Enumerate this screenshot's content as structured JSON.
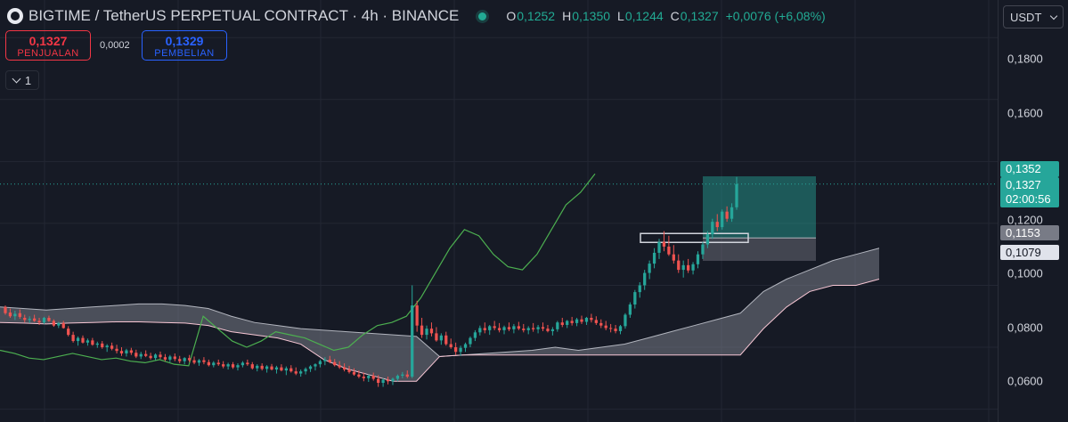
{
  "header": {
    "title": "BIGTIME / TetherUS PERPETUAL CONTRACT · 4h · BINANCE",
    "ohlc": {
      "o_key": "O",
      "o": "0,1252",
      "h_key": "H",
      "h": "0,1350",
      "l_key": "L",
      "l": "0,1244",
      "c_key": "C",
      "c": "0,1327",
      "change": "+0,0076 (+6,08%)"
    }
  },
  "trade": {
    "sell_price": "0,1327",
    "sell_label": "PENJUALAN",
    "spread": "0,0002",
    "buy_price": "0,1329",
    "buy_label": "PEMBELIAN"
  },
  "indicator_toggle": {
    "count": "1"
  },
  "currency": {
    "label": "USDT"
  },
  "axis": {
    "ticks": [
      "0,1800",
      "0,1600",
      "0,1200",
      "0,1000",
      "0,0800",
      "0,0600"
    ],
    "tags": {
      "high": "0,1352",
      "last": "0,1327",
      "countdown": "02:00:56",
      "level_a": "0,1153",
      "level_b": "0,1079"
    }
  },
  "colors": {
    "up": "#26a69a",
    "down": "#ef5350",
    "cloud_fill": "#787b86",
    "lagging": "#4caf50",
    "span_b": "#f7c6d4",
    "accent": "#22ab94"
  },
  "chart_data": {
    "type": "candlestick",
    "symbol": "BIGTIME/USDT perpetual",
    "timeframe": "4h",
    "exchange": "BINANCE",
    "ylim": [
      0.057,
      0.191
    ],
    "grid": true,
    "last_price": 0.1327,
    "price_line": 0.1327,
    "candles": [
      [
        0.093,
        0.0935,
        0.0905,
        0.091
      ],
      [
        0.0912,
        0.0925,
        0.0895,
        0.09
      ],
      [
        0.09,
        0.0918,
        0.0888,
        0.0908
      ],
      [
        0.091,
        0.0922,
        0.0892,
        0.0898
      ],
      [
        0.0895,
        0.0905,
        0.088,
        0.0888
      ],
      [
        0.0888,
        0.09,
        0.0878,
        0.0892
      ],
      [
        0.0893,
        0.0905,
        0.0882,
        0.0885
      ],
      [
        0.0885,
        0.0895,
        0.0872,
        0.088
      ],
      [
        0.088,
        0.0898,
        0.0875,
        0.0895
      ],
      [
        0.0895,
        0.0902,
        0.0882,
        0.0885
      ],
      [
        0.0885,
        0.089,
        0.0866,
        0.087
      ],
      [
        0.087,
        0.0882,
        0.0862,
        0.0878
      ],
      [
        0.0878,
        0.0885,
        0.086,
        0.0862
      ],
      [
        0.086,
        0.0868,
        0.0835,
        0.084
      ],
      [
        0.084,
        0.085,
        0.0815,
        0.082
      ],
      [
        0.082,
        0.0835,
        0.0805,
        0.083
      ],
      [
        0.083,
        0.0838,
        0.0812,
        0.0815
      ],
      [
        0.0815,
        0.0828,
        0.0805,
        0.0822
      ],
      [
        0.0822,
        0.083,
        0.0805,
        0.0808
      ],
      [
        0.0808,
        0.0818,
        0.0798,
        0.0812
      ],
      [
        0.0812,
        0.082,
        0.0795,
        0.08
      ],
      [
        0.08,
        0.081,
        0.0785,
        0.0805
      ],
      [
        0.0805,
        0.0815,
        0.079,
        0.0795
      ],
      [
        0.0795,
        0.0808,
        0.078,
        0.0788
      ],
      [
        0.0788,
        0.08,
        0.0772,
        0.078
      ],
      [
        0.078,
        0.0795,
        0.077,
        0.079
      ],
      [
        0.079,
        0.0798,
        0.0775,
        0.0782
      ],
      [
        0.0782,
        0.0792,
        0.0765,
        0.077
      ],
      [
        0.077,
        0.0785,
        0.0762,
        0.0778
      ],
      [
        0.0778,
        0.079,
        0.0768,
        0.0772
      ],
      [
        0.0772,
        0.0782,
        0.076,
        0.0765
      ],
      [
        0.0765,
        0.078,
        0.0758,
        0.0776
      ],
      [
        0.0776,
        0.0786,
        0.0762,
        0.0768
      ],
      [
        0.0768,
        0.0778,
        0.0755,
        0.076
      ],
      [
        0.076,
        0.0775,
        0.0752,
        0.077
      ],
      [
        0.077,
        0.078,
        0.0755,
        0.0762
      ],
      [
        0.0762,
        0.0772,
        0.0748,
        0.0755
      ],
      [
        0.0755,
        0.0768,
        0.0745,
        0.0765
      ],
      [
        0.0765,
        0.0775,
        0.0752,
        0.0758
      ],
      [
        0.0758,
        0.077,
        0.0745,
        0.075
      ],
      [
        0.075,
        0.0762,
        0.074,
        0.0758
      ],
      [
        0.0758,
        0.0768,
        0.0745,
        0.0752
      ],
      [
        0.0752,
        0.076,
        0.0738,
        0.0742
      ],
      [
        0.0742,
        0.0755,
        0.0735,
        0.075
      ],
      [
        0.075,
        0.076,
        0.074,
        0.0745
      ],
      [
        0.0745,
        0.0755,
        0.0732,
        0.0738
      ],
      [
        0.0738,
        0.075,
        0.0728,
        0.0745
      ],
      [
        0.0745,
        0.0752,
        0.073,
        0.0735
      ],
      [
        0.0735,
        0.0748,
        0.0725,
        0.0742
      ],
      [
        0.0742,
        0.0755,
        0.0735,
        0.075
      ],
      [
        0.075,
        0.076,
        0.074,
        0.0745
      ],
      [
        0.0745,
        0.0752,
        0.0728,
        0.0732
      ],
      [
        0.0732,
        0.0745,
        0.0722,
        0.074
      ],
      [
        0.074,
        0.0748,
        0.0725,
        0.073
      ],
      [
        0.073,
        0.0742,
        0.0718,
        0.0738
      ],
      [
        0.0738,
        0.0746,
        0.0725,
        0.0728
      ],
      [
        0.0728,
        0.074,
        0.0715,
        0.0735
      ],
      [
        0.0735,
        0.0745,
        0.0722,
        0.0725
      ],
      [
        0.0725,
        0.0738,
        0.071,
        0.0732
      ],
      [
        0.0732,
        0.0742,
        0.0718,
        0.0722
      ],
      [
        0.0722,
        0.0735,
        0.071,
        0.0715
      ],
      [
        0.0715,
        0.0728,
        0.0705,
        0.0722
      ],
      [
        0.0722,
        0.0735,
        0.0712,
        0.073
      ],
      [
        0.073,
        0.0742,
        0.072,
        0.0738
      ],
      [
        0.0738,
        0.0748,
        0.0725,
        0.0745
      ],
      [
        0.0745,
        0.076,
        0.0735,
        0.0755
      ],
      [
        0.0755,
        0.0768,
        0.0742,
        0.076
      ],
      [
        0.076,
        0.0772,
        0.0748,
        0.0752
      ],
      [
        0.0752,
        0.0762,
        0.0738,
        0.0742
      ],
      [
        0.0742,
        0.0755,
        0.073,
        0.0735
      ],
      [
        0.0735,
        0.0748,
        0.0722,
        0.0728
      ],
      [
        0.0728,
        0.074,
        0.0715,
        0.072
      ],
      [
        0.072,
        0.0732,
        0.0708,
        0.0712
      ],
      [
        0.0712,
        0.0725,
        0.07,
        0.0705
      ],
      [
        0.0705,
        0.0718,
        0.069,
        0.07
      ],
      [
        0.07,
        0.0712,
        0.0688,
        0.0708
      ],
      [
        0.0708,
        0.0718,
        0.0692,
        0.0698
      ],
      [
        0.0698,
        0.071,
        0.0672,
        0.0685
      ],
      [
        0.0685,
        0.07,
        0.0672,
        0.0695
      ],
      [
        0.0695,
        0.0705,
        0.068,
        0.069
      ],
      [
        0.069,
        0.0702,
        0.0678,
        0.0698
      ],
      [
        0.0698,
        0.0712,
        0.069,
        0.0708
      ],
      [
        0.0708,
        0.072,
        0.07,
        0.0712
      ],
      [
        0.0712,
        0.0725,
        0.07,
        0.0705
      ],
      [
        0.0705,
        0.1,
        0.07,
        0.0935
      ],
      [
        0.0935,
        0.095,
        0.085,
        0.087
      ],
      [
        0.087,
        0.0895,
        0.083,
        0.084
      ],
      [
        0.084,
        0.087,
        0.0825,
        0.086
      ],
      [
        0.086,
        0.088,
        0.0835,
        0.0845
      ],
      [
        0.0845,
        0.0865,
        0.0818,
        0.0822
      ],
      [
        0.0822,
        0.0845,
        0.0808,
        0.0838
      ],
      [
        0.0838,
        0.085,
        0.0805,
        0.081
      ],
      [
        0.081,
        0.0828,
        0.0795,
        0.08
      ],
      [
        0.08,
        0.0815,
        0.0775,
        0.0785
      ],
      [
        0.0785,
        0.0805,
        0.0772,
        0.0798
      ],
      [
        0.0798,
        0.0815,
        0.0785,
        0.081
      ],
      [
        0.081,
        0.0835,
        0.08,
        0.083
      ],
      [
        0.083,
        0.0855,
        0.082,
        0.0848
      ],
      [
        0.0848,
        0.087,
        0.0838,
        0.0862
      ],
      [
        0.0862,
        0.088,
        0.0845,
        0.0855
      ],
      [
        0.0855,
        0.0872,
        0.084,
        0.0868
      ],
      [
        0.0868,
        0.0885,
        0.0855,
        0.0862
      ],
      [
        0.0862,
        0.0878,
        0.0848,
        0.0855
      ],
      [
        0.0855,
        0.087,
        0.0842,
        0.0865
      ],
      [
        0.0865,
        0.088,
        0.0852,
        0.0858
      ],
      [
        0.0858,
        0.0875,
        0.0845,
        0.0868
      ],
      [
        0.0868,
        0.0882,
        0.0855,
        0.086
      ],
      [
        0.086,
        0.0875,
        0.0848,
        0.0855
      ],
      [
        0.0855,
        0.0868,
        0.0842,
        0.0862
      ],
      [
        0.0862,
        0.0878,
        0.085,
        0.0858
      ],
      [
        0.0858,
        0.0872,
        0.0845,
        0.0865
      ],
      [
        0.0865,
        0.088,
        0.0852,
        0.086
      ],
      [
        0.086,
        0.0872,
        0.0848,
        0.0852
      ],
      [
        0.0852,
        0.0865,
        0.0838,
        0.0858
      ],
      [
        0.0858,
        0.0885,
        0.085,
        0.088
      ],
      [
        0.088,
        0.0895,
        0.0865,
        0.0872
      ],
      [
        0.0872,
        0.0888,
        0.0862,
        0.0885
      ],
      [
        0.0885,
        0.0898,
        0.087,
        0.0878
      ],
      [
        0.0878,
        0.0895,
        0.0868,
        0.089
      ],
      [
        0.089,
        0.0902,
        0.0875,
        0.0882
      ],
      [
        0.0882,
        0.0898,
        0.0872,
        0.0895
      ],
      [
        0.0895,
        0.0908,
        0.088,
        0.0888
      ],
      [
        0.0888,
        0.09,
        0.0872,
        0.0878
      ],
      [
        0.0878,
        0.089,
        0.0862,
        0.087
      ],
      [
        0.087,
        0.0885,
        0.0855,
        0.0862
      ],
      [
        0.0862,
        0.0875,
        0.0848,
        0.086
      ],
      [
        0.086,
        0.0872,
        0.0845,
        0.0852
      ],
      [
        0.0852,
        0.0872,
        0.0842,
        0.0868
      ],
      [
        0.0868,
        0.091,
        0.086,
        0.0905
      ],
      [
        0.0905,
        0.0945,
        0.0895,
        0.0938
      ],
      [
        0.0938,
        0.0985,
        0.0925,
        0.0978
      ],
      [
        0.0978,
        0.101,
        0.096,
        0.1
      ],
      [
        0.1,
        0.105,
        0.0985,
        0.104
      ],
      [
        0.104,
        0.108,
        0.102,
        0.107
      ],
      [
        0.107,
        0.112,
        0.1055,
        0.1105
      ],
      [
        0.1105,
        0.115,
        0.1085,
        0.114
      ],
      [
        0.114,
        0.1175,
        0.111,
        0.1125
      ],
      [
        0.1125,
        0.116,
        0.1095,
        0.11
      ],
      [
        0.11,
        0.113,
        0.107,
        0.108
      ],
      [
        0.108,
        0.11,
        0.104,
        0.105
      ],
      [
        0.105,
        0.108,
        0.1025,
        0.1065
      ],
      [
        0.1065,
        0.1085,
        0.104,
        0.1048
      ],
      [
        0.1048,
        0.1075,
        0.1035,
        0.1068
      ],
      [
        0.1068,
        0.111,
        0.1055,
        0.11
      ],
      [
        0.11,
        0.114,
        0.1085,
        0.1132
      ],
      [
        0.1132,
        0.1175,
        0.112,
        0.1165
      ],
      [
        0.1165,
        0.1215,
        0.115,
        0.1205
      ],
      [
        0.1205,
        0.123,
        0.1175,
        0.1188
      ],
      [
        0.1188,
        0.1245,
        0.118,
        0.1238
      ],
      [
        0.1238,
        0.1255,
        0.1205,
        0.1215
      ],
      [
        0.1215,
        0.1265,
        0.1205,
        0.1252
      ],
      [
        0.1252,
        0.135,
        0.1244,
        0.1327
      ]
    ],
    "cloud": {
      "span_a": [
        0.093,
        0.0925,
        0.092,
        0.0925,
        0.093,
        0.0935,
        0.094,
        0.094,
        0.0935,
        0.0925,
        0.09,
        0.088,
        0.087,
        0.086,
        0.0855,
        0.085,
        0.0845,
        0.084,
        0.0835,
        0.077,
        0.0775,
        0.078,
        0.0785,
        0.079,
        0.08,
        0.079,
        0.08,
        0.081,
        0.083,
        0.085,
        0.087,
        0.089,
        0.091,
        0.098,
        0.102,
        0.105,
        0.108,
        0.11,
        0.112
      ],
      "span_b": [
        0.088,
        0.0878,
        0.0875,
        0.0878,
        0.088,
        0.0882,
        0.0882,
        0.088,
        0.0878,
        0.087,
        0.085,
        0.084,
        0.083,
        0.081,
        0.076,
        0.073,
        0.071,
        0.069,
        0.069,
        0.077,
        0.0775,
        0.0775,
        0.0775,
        0.0775,
        0.0775,
        0.0775,
        0.0775,
        0.0775,
        0.0775,
        0.0775,
        0.0775,
        0.0775,
        0.0775,
        0.086,
        0.093,
        0.098,
        0.1,
        0.1,
        0.102
      ]
    },
    "lagging_span": [
      0.079,
      0.078,
      0.0765,
      0.076,
      0.077,
      0.078,
      0.077,
      0.076,
      0.0765,
      0.0755,
      0.075,
      0.076,
      0.0745,
      0.074,
      0.09,
      0.086,
      0.082,
      0.08,
      0.082,
      0.085,
      0.084,
      0.083,
      0.081,
      0.079,
      0.08,
      0.084,
      0.087,
      0.088,
      0.09,
      0.096,
      0.104,
      0.112,
      0.118,
      0.116,
      0.11,
      0.106,
      0.105,
      0.11,
      0.118,
      0.126,
      0.13,
      0.136
    ],
    "position_box": {
      "entry": 0.1153,
      "target": 0.1352,
      "stop": 0.1079
    },
    "marker_box": {
      "price": 0.1153
    }
  }
}
